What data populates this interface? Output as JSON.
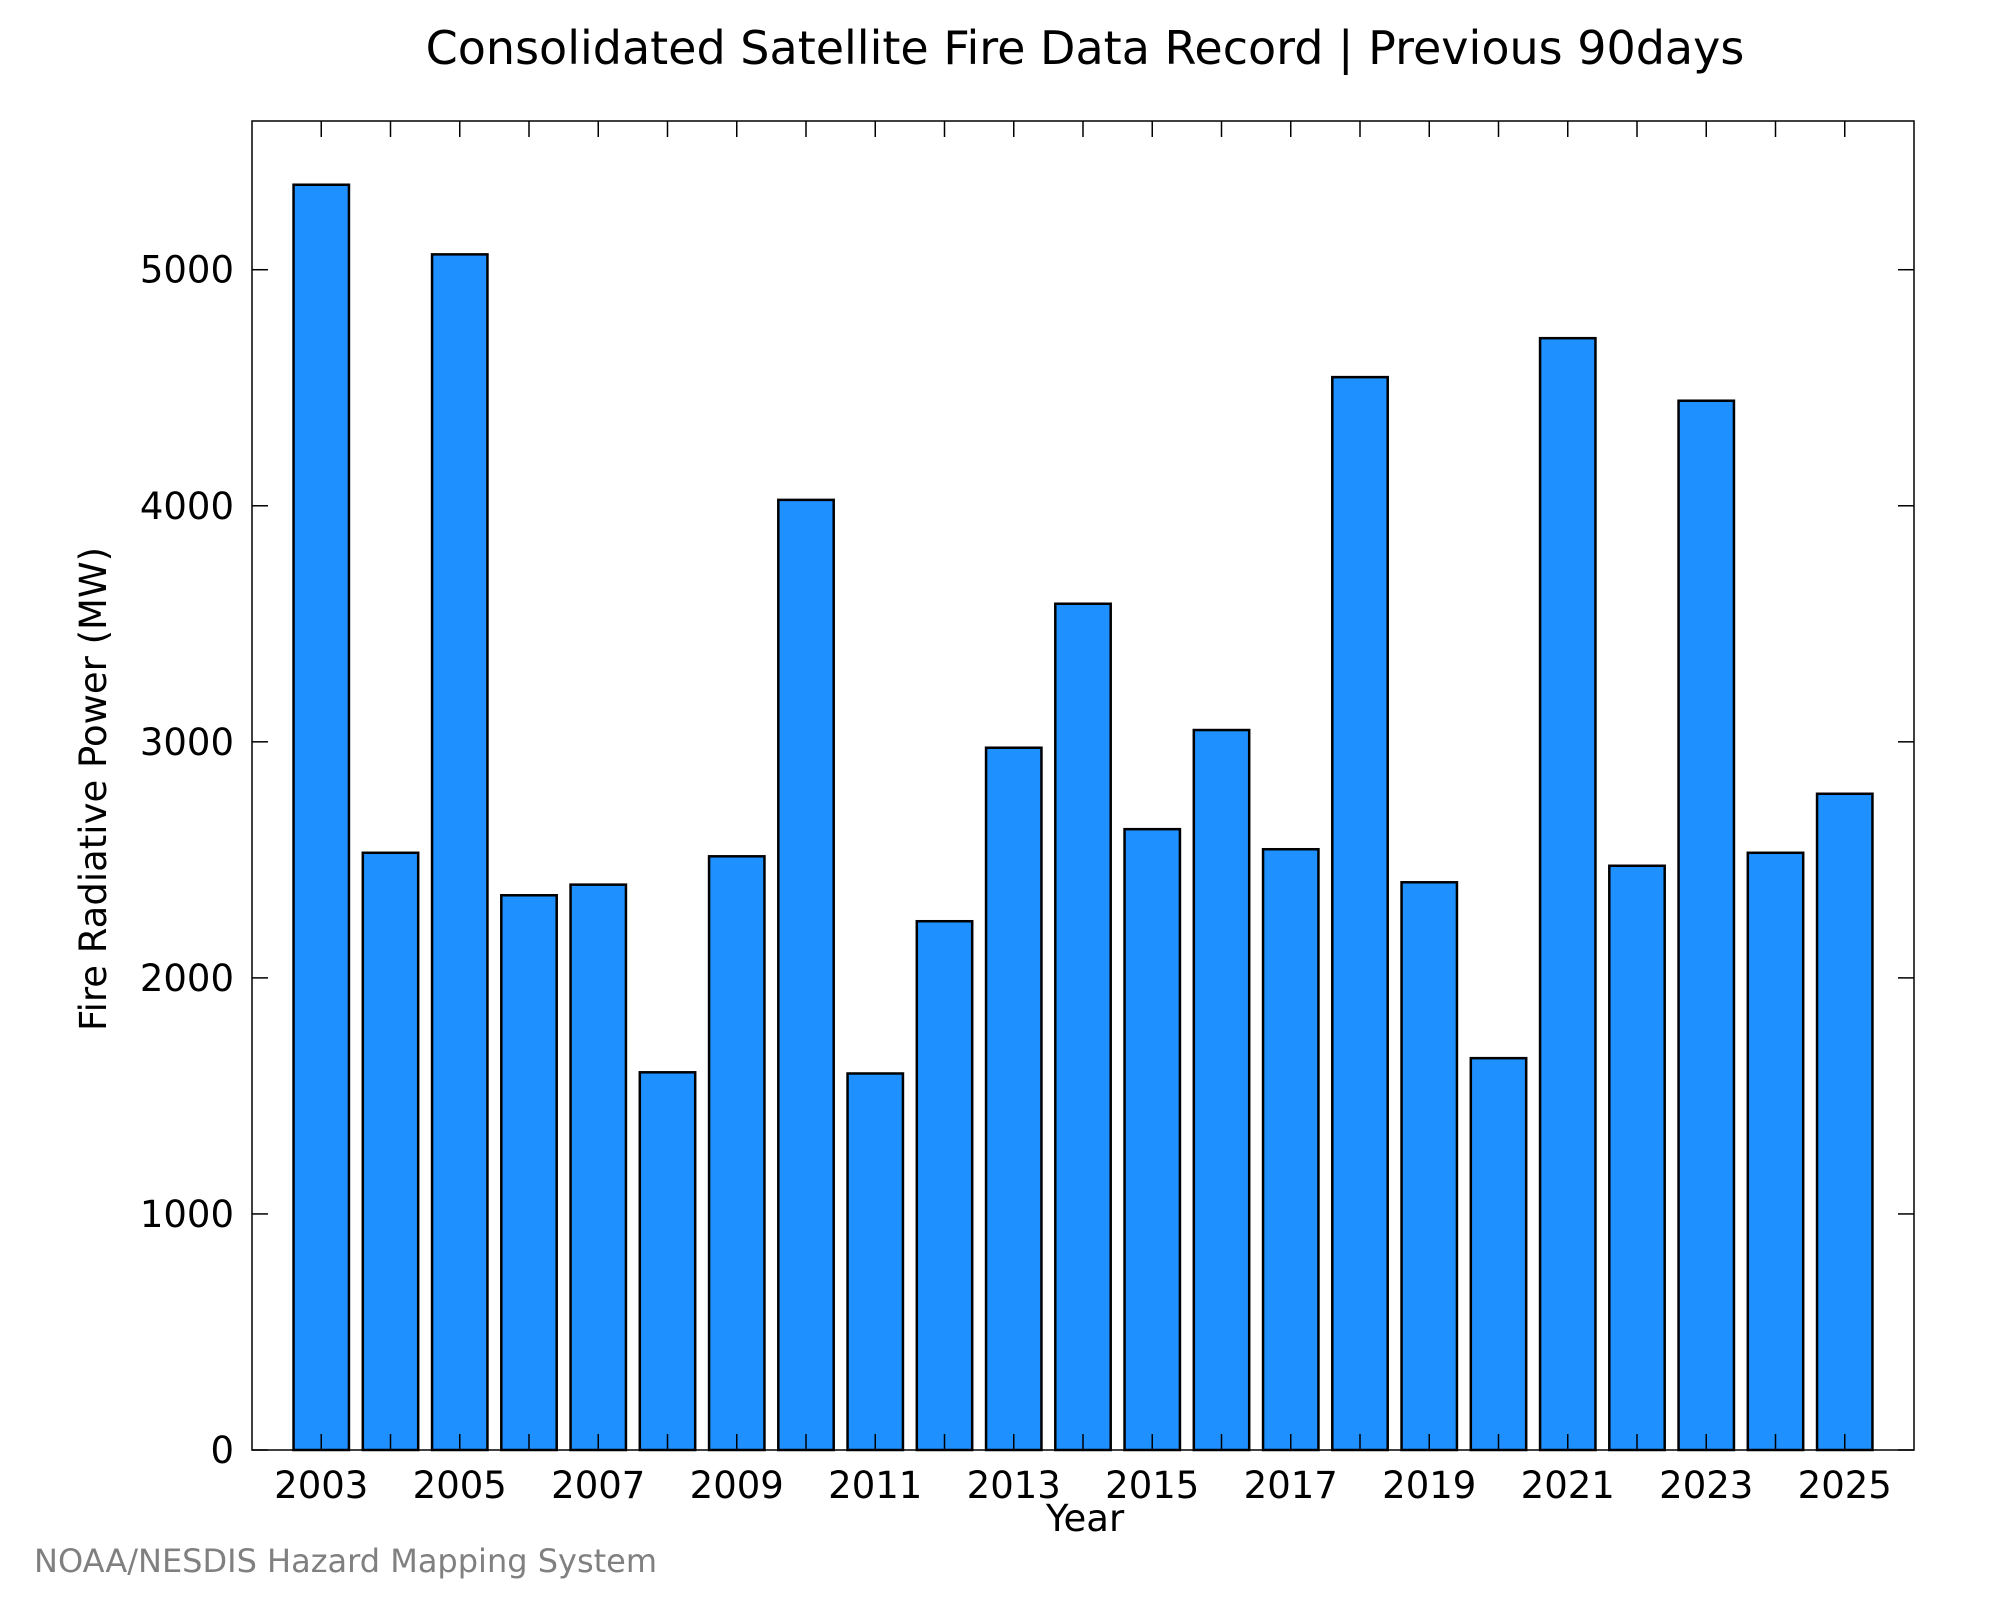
{
  "chart_data": {
    "type": "bar",
    "title": "Consolidated Satellite Fire Data Record | Previous 90days",
    "xlabel": "Year",
    "ylabel": "Fire Radiative Power (MW)",
    "categories": [
      "2003",
      "2004",
      "2005",
      "2006",
      "2007",
      "2008",
      "2009",
      "2010",
      "2011",
      "2012",
      "2013",
      "2014",
      "2015",
      "2016",
      "2017",
      "2018",
      "2019",
      "2020",
      "2021",
      "2022",
      "2023",
      "2024",
      "2025"
    ],
    "values": [
      5360,
      2530,
      5065,
      2350,
      2395,
      1600,
      2515,
      4025,
      1595,
      2240,
      2975,
      3585,
      2630,
      3050,
      2545,
      4545,
      2405,
      1660,
      4710,
      2475,
      4445,
      2530,
      2780
    ],
    "x_tick_labels": [
      "2003",
      "2005",
      "2007",
      "2009",
      "2011",
      "2013",
      "2015",
      "2017",
      "2019",
      "2021",
      "2023",
      "2025"
    ],
    "y_ticks": [
      0,
      1000,
      2000,
      3000,
      4000,
      5000
    ],
    "ylim": [
      0,
      5630
    ],
    "grid": false,
    "bar_color": "#1E90FF",
    "bar_edge_color": "#000000"
  },
  "credit": "NOAA/NESDIS Hazard Mapping System"
}
